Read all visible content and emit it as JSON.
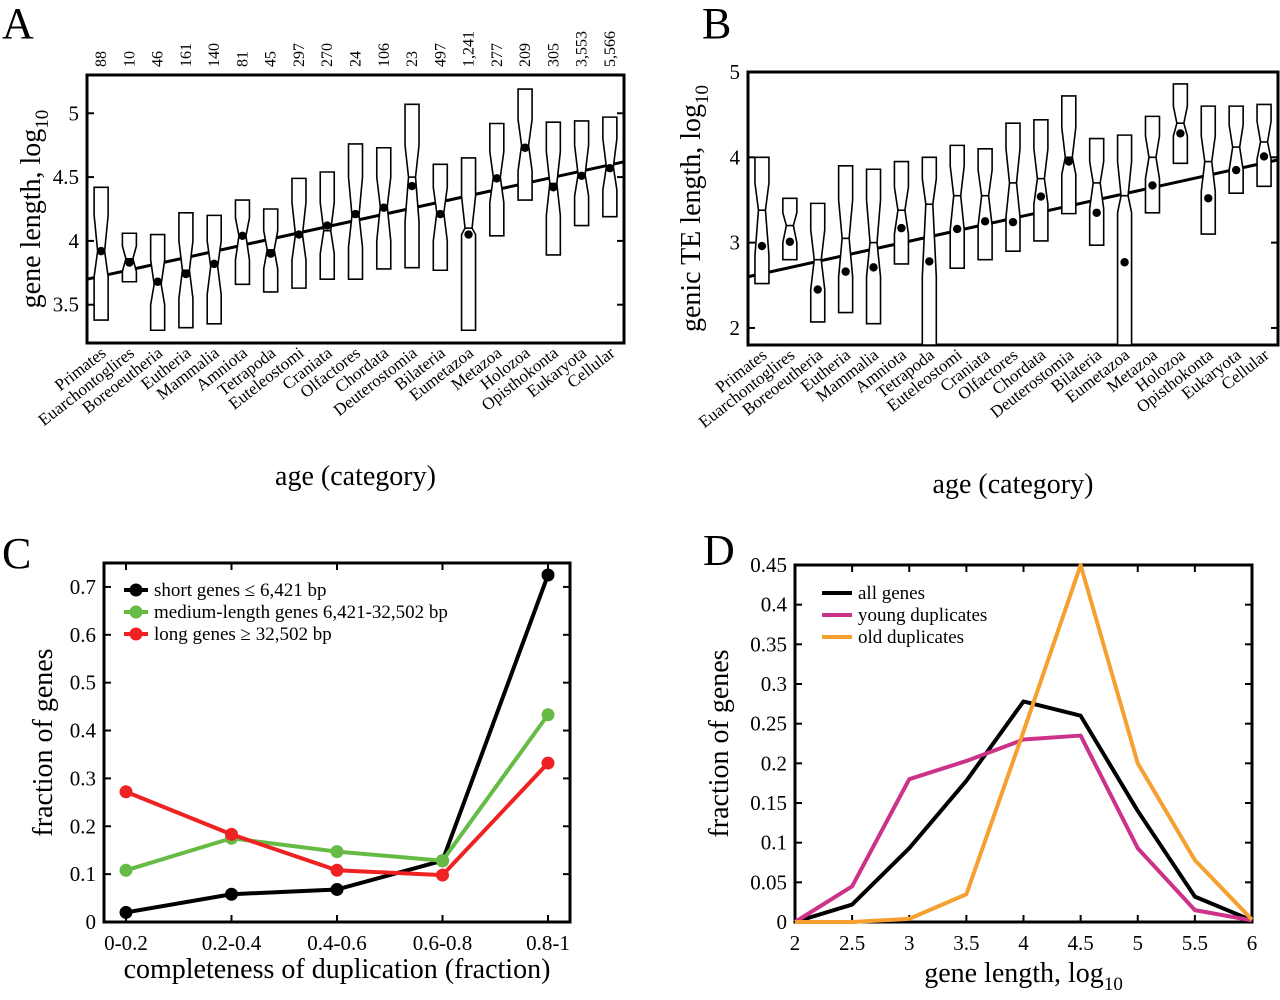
{
  "panel_letters": [
    "A",
    "B",
    "C",
    "D"
  ],
  "chart_data": [
    {
      "panel": "A",
      "type": "boxplot",
      "xlabel": "age (category)",
      "ylabel": "gene length, log",
      "ylabel_sub": "10",
      "ylim": [
        3.2,
        5.3
      ],
      "yticks": [
        3.5,
        4,
        4.5,
        5
      ],
      "ytick_labels": [
        "3.5",
        "4",
        "4.5",
        "5"
      ],
      "categories": [
        "Primates",
        "Euarchontoglires",
        "Boreoeutheria",
        "Eutheria",
        "Mammalia",
        "Amniota",
        "Tetrapoda",
        "Euteleostomi",
        "Craniata",
        "Olfactores",
        "Chordata",
        "Deuterostomia",
        "Bilateria",
        "Eumetazoa",
        "Metazoa",
        "Holozoa",
        "Opisthokonta",
        "Eukaryota",
        "Cellular"
      ],
      "counts": [
        "88",
        "10",
        "46",
        "161",
        "140",
        "81",
        "45",
        "297",
        "270",
        "24",
        "106",
        "23",
        "497",
        "1,241",
        "277",
        "209",
        "305",
        "3,553",
        "5,566"
      ],
      "boxes": [
        {
          "low": 3.38,
          "q1": 3.72,
          "med": 3.92,
          "q3": 4.2,
          "high": 4.42,
          "mean": 3.92
        },
        {
          "low": 3.68,
          "q1": 3.76,
          "med": 3.86,
          "q3": 3.96,
          "high": 4.06,
          "mean": 3.83
        },
        {
          "low": 3.3,
          "q1": 3.5,
          "med": 3.66,
          "q3": 3.85,
          "high": 4.05,
          "mean": 3.68
        },
        {
          "low": 3.32,
          "q1": 3.55,
          "med": 3.77,
          "q3": 4.0,
          "high": 4.22,
          "mean": 3.74
        },
        {
          "low": 3.35,
          "q1": 3.58,
          "med": 3.8,
          "q3": 4.0,
          "high": 4.2,
          "mean": 3.82
        },
        {
          "low": 3.66,
          "q1": 3.85,
          "med": 4.04,
          "q3": 4.18,
          "high": 4.32,
          "mean": 4.04
        },
        {
          "low": 3.6,
          "q1": 3.78,
          "med": 3.93,
          "q3": 4.08,
          "high": 4.25,
          "mean": 3.9
        },
        {
          "low": 3.63,
          "q1": 3.85,
          "med": 4.05,
          "q3": 4.3,
          "high": 4.49,
          "mean": 4.05
        },
        {
          "low": 3.7,
          "q1": 3.9,
          "med": 4.08,
          "q3": 4.3,
          "high": 4.54,
          "mean": 4.12
        },
        {
          "low": 3.7,
          "q1": 3.95,
          "med": 4.2,
          "q3": 4.5,
          "high": 4.76,
          "mean": 4.21
        },
        {
          "low": 3.78,
          "q1": 4.0,
          "med": 4.27,
          "q3": 4.5,
          "high": 4.73,
          "mean": 4.26
        },
        {
          "low": 3.79,
          "q1": 4.15,
          "med": 4.5,
          "q3": 4.75,
          "high": 5.07,
          "mean": 4.43
        },
        {
          "low": 3.77,
          "q1": 4.0,
          "med": 4.22,
          "q3": 4.42,
          "high": 4.6,
          "mean": 4.21
        },
        {
          "low": 3.3,
          "q1": 4.05,
          "med": 4.1,
          "q3": 4.35,
          "high": 4.65,
          "mean": 4.05
        },
        {
          "low": 4.04,
          "q1": 4.3,
          "med": 4.5,
          "q3": 4.7,
          "high": 4.92,
          "mean": 4.49
        },
        {
          "low": 4.32,
          "q1": 4.55,
          "med": 4.75,
          "q3": 4.95,
          "high": 5.19,
          "mean": 4.73
        },
        {
          "low": 3.89,
          "q1": 4.2,
          "med": 4.45,
          "q3": 4.7,
          "high": 4.93,
          "mean": 4.42
        },
        {
          "low": 4.12,
          "q1": 4.35,
          "med": 4.52,
          "q3": 4.75,
          "high": 4.94,
          "mean": 4.51
        },
        {
          "low": 4.19,
          "q1": 4.4,
          "med": 4.58,
          "q3": 4.8,
          "high": 4.97,
          "mean": 4.57
        }
      ],
      "fit": [
        3.7,
        4.62
      ]
    },
    {
      "panel": "B",
      "type": "boxplot",
      "xlabel": "age (category)",
      "ylabel": "genic TE length, log",
      "ylabel_sub": "10",
      "ylim": [
        1.8,
        5.0
      ],
      "yticks": [
        2,
        3,
        4,
        5
      ],
      "ytick_labels": [
        "2",
        "3",
        "4",
        "5"
      ],
      "categories": [
        "Primates",
        "Euarchontoglires",
        "Boreoeutheria",
        "Eutheria",
        "Mammalia",
        "Amniota",
        "Tetrapoda",
        "Euteleostomi",
        "Craniata",
        "Olfactores",
        "Chordata",
        "Deuterostomia",
        "Bilateria",
        "Eumetazoa",
        "Metazoa",
        "Holozoa",
        "Opisthokonta",
        "Eukaryota",
        "Cellular"
      ],
      "boxes": [
        {
          "low": 2.52,
          "q1": 2.85,
          "med": 3.38,
          "q3": 3.7,
          "high": 4.0,
          "mean": 2.96
        },
        {
          "low": 2.8,
          "q1": 3.0,
          "med": 3.2,
          "q3": 3.35,
          "high": 3.52,
          "mean": 3.01
        },
        {
          "low": 2.07,
          "q1": 2.45,
          "med": 2.8,
          "q3": 3.15,
          "high": 3.46,
          "mean": 2.45
        },
        {
          "low": 2.18,
          "q1": 2.6,
          "med": 3.05,
          "q3": 3.5,
          "high": 3.9,
          "mean": 2.66
        },
        {
          "low": 2.05,
          "q1": 2.6,
          "med": 3.0,
          "q3": 3.5,
          "high": 3.86,
          "mean": 2.71
        },
        {
          "low": 2.75,
          "q1": 3.1,
          "med": 3.38,
          "q3": 3.65,
          "high": 3.95,
          "mean": 3.17
        },
        {
          "low": 1.8,
          "q1": 2.6,
          "med": 3.45,
          "q3": 3.75,
          "high": 4.0,
          "mean": 2.78
        },
        {
          "low": 2.7,
          "q1": 3.15,
          "med": 3.55,
          "q3": 3.9,
          "high": 4.14,
          "mean": 3.16
        },
        {
          "low": 2.8,
          "q1": 3.2,
          "med": 3.55,
          "q3": 3.85,
          "high": 4.1,
          "mean": 3.25
        },
        {
          "low": 2.9,
          "q1": 3.3,
          "med": 3.7,
          "q3": 4.1,
          "high": 4.4,
          "mean": 3.24
        },
        {
          "low": 3.02,
          "q1": 3.45,
          "med": 3.75,
          "q3": 4.1,
          "high": 4.44,
          "mean": 3.54
        },
        {
          "low": 3.34,
          "q1": 3.8,
          "med": 4.0,
          "q3": 4.35,
          "high": 4.72,
          "mean": 3.95
        },
        {
          "low": 2.97,
          "q1": 3.4,
          "med": 3.7,
          "q3": 3.95,
          "high": 4.22,
          "mean": 3.35
        },
        {
          "low": 1.8,
          "q1": 3.35,
          "med": 3.55,
          "q3": 3.95,
          "high": 4.26,
          "mean": 2.77
        },
        {
          "low": 3.35,
          "q1": 3.75,
          "med": 4.0,
          "q3": 4.25,
          "high": 4.48,
          "mean": 3.67
        },
        {
          "low": 3.93,
          "q1": 4.25,
          "med": 4.4,
          "q3": 4.6,
          "high": 4.86,
          "mean": 4.28
        },
        {
          "low": 3.1,
          "q1": 3.6,
          "med": 3.95,
          "q3": 4.25,
          "high": 4.6,
          "mean": 3.52
        },
        {
          "low": 3.58,
          "q1": 3.85,
          "med": 4.12,
          "q3": 4.38,
          "high": 4.6,
          "mean": 3.85
        },
        {
          "low": 3.66,
          "q1": 3.98,
          "med": 4.18,
          "q3": 4.42,
          "high": 4.62,
          "mean": 4.01
        }
      ],
      "fit": [
        2.6,
        3.97
      ]
    },
    {
      "panel": "C",
      "type": "line",
      "xlabel": "completeness of duplication (fraction)",
      "ylabel": "fraction of genes",
      "categories": [
        "0-0.2",
        "0.2-0.4",
        "0.4-0.6",
        "0.6-0.8",
        "0.8-1"
      ],
      "ylim": [
        0,
        0.75
      ],
      "yticks": [
        0,
        0.1,
        0.2,
        0.3,
        0.4,
        0.5,
        0.6,
        0.7
      ],
      "ytick_labels": [
        "0",
        "0.1",
        "0.2",
        "0.3",
        "0.4",
        "0.5",
        "0.6",
        "0.7"
      ],
      "legend_position": "top-left",
      "series": [
        {
          "name": "short genes ≤ 6,421 bp",
          "color": "#000000",
          "values": [
            0.02,
            0.058,
            0.068,
            0.128,
            0.725
          ]
        },
        {
          "name": "medium-length genes 6,421-32,502 bp",
          "color": "#66bb44",
          "values": [
            0.108,
            0.175,
            0.147,
            0.128,
            0.433
          ]
        },
        {
          "name": "long genes ≥ 32,502 bp",
          "color": "#ee2222",
          "values": [
            0.272,
            0.183,
            0.108,
            0.098,
            0.332
          ]
        }
      ]
    },
    {
      "panel": "D",
      "type": "line",
      "xlabel": "gene length, log",
      "xlabel_sub": "10",
      "ylabel": "fraction of genes",
      "xlim": [
        2,
        6
      ],
      "ylim": [
        0,
        0.45
      ],
      "xticks": [
        2,
        2.5,
        3,
        3.5,
        4,
        4.5,
        5,
        5.5,
        6
      ],
      "xtick_labels": [
        "2",
        "2.5",
        "3",
        "3.5",
        "4",
        "4.5",
        "5",
        "5.5",
        "6"
      ],
      "yticks": [
        0,
        0.05,
        0.1,
        0.15,
        0.2,
        0.25,
        0.3,
        0.35,
        0.4,
        0.45
      ],
      "ytick_labels": [
        "0",
        "0.05",
        "0.1",
        "0.15",
        "0.2",
        "0.25",
        "0.3",
        "0.35",
        "0.4",
        "0.45"
      ],
      "legend_position": "top-left",
      "series": [
        {
          "name": "all genes",
          "color": "#000000",
          "x": [
            2,
            2.5,
            3,
            3.5,
            4,
            4.5,
            5,
            5.5,
            6
          ],
          "values": [
            0.0,
            0.022,
            0.093,
            0.178,
            0.278,
            0.26,
            0.14,
            0.032,
            0.002
          ]
        },
        {
          "name": "young duplicates",
          "color": "#cc3388",
          "x": [
            2,
            2.5,
            3,
            3.5,
            4,
            4.5,
            5,
            5.5,
            6
          ],
          "values": [
            0.0,
            0.045,
            0.18,
            0.203,
            0.23,
            0.235,
            0.093,
            0.015,
            0.002
          ]
        },
        {
          "name": "old duplicates",
          "color": "#f5a030",
          "x": [
            2,
            2.5,
            3,
            3.5,
            4,
            4.5,
            5,
            5.5,
            6
          ],
          "values": [
            0.0,
            0.0,
            0.004,
            0.035,
            0.24,
            0.45,
            0.2,
            0.078,
            0.003
          ]
        }
      ]
    }
  ]
}
